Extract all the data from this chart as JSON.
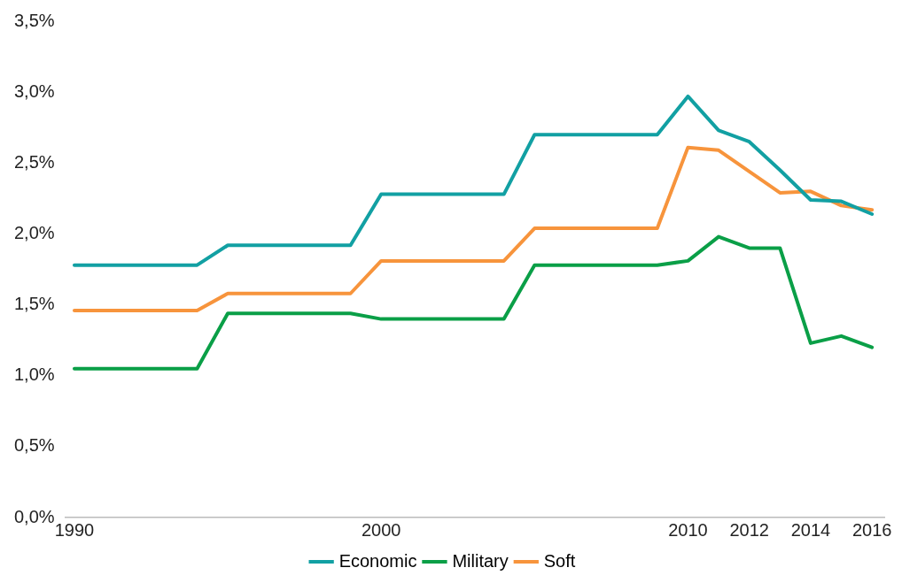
{
  "chart_data": {
    "type": "line",
    "x": [
      1990,
      1991,
      1992,
      1993,
      1994,
      1995,
      1996,
      1997,
      1998,
      1999,
      2000,
      2001,
      2002,
      2003,
      2004,
      2005,
      2006,
      2007,
      2008,
      2009,
      2010,
      2011,
      2012,
      2013,
      2014,
      2015,
      2016
    ],
    "series": [
      {
        "name": "Economic",
        "color": "#12a0a3",
        "values": [
          1.78,
          1.78,
          1.78,
          1.78,
          1.78,
          1.92,
          1.92,
          1.92,
          1.92,
          1.92,
          2.28,
          2.28,
          2.28,
          2.28,
          2.28,
          2.7,
          2.7,
          2.7,
          2.7,
          2.7,
          2.97,
          2.73,
          2.65,
          2.45,
          2.24,
          2.23,
          2.14
        ]
      },
      {
        "name": "Military",
        "color": "#0a9f47",
        "values": [
          1.05,
          1.05,
          1.05,
          1.05,
          1.05,
          1.44,
          1.44,
          1.44,
          1.44,
          1.44,
          1.4,
          1.4,
          1.4,
          1.4,
          1.4,
          1.78,
          1.78,
          1.78,
          1.78,
          1.78,
          1.81,
          1.98,
          1.9,
          1.9,
          1.23,
          1.28,
          1.2
        ]
      },
      {
        "name": "Soft",
        "color": "#f7943c",
        "values": [
          1.46,
          1.46,
          1.46,
          1.46,
          1.46,
          1.58,
          1.58,
          1.58,
          1.58,
          1.58,
          1.81,
          1.81,
          1.81,
          1.81,
          1.81,
          2.04,
          2.04,
          2.04,
          2.04,
          2.04,
          2.61,
          2.59,
          2.44,
          2.29,
          2.3,
          2.2,
          2.17
        ]
      }
    ],
    "xlim": [
      1989.7,
      2016.4
    ],
    "xticks": [
      1990,
      2000,
      2010,
      2012,
      2014,
      2016
    ],
    "ylim": [
      0,
      3.5
    ],
    "yticks": [
      {
        "value": 0,
        "label": "0,0%"
      },
      {
        "value": 0.5,
        "label": "0,5%"
      },
      {
        "value": 1,
        "label": "1,0%"
      },
      {
        "value": 1.5,
        "label": "1,5%"
      },
      {
        "value": 2,
        "label": "2,0%"
      },
      {
        "value": 2.5,
        "label": "2,5%"
      },
      {
        "value": 3,
        "label": "3,0%"
      },
      {
        "value": 3.5,
        "label": "3,5%"
      }
    ],
    "grid": false,
    "legend": "bottom",
    "marker": "none",
    "line_style": "solid"
  }
}
